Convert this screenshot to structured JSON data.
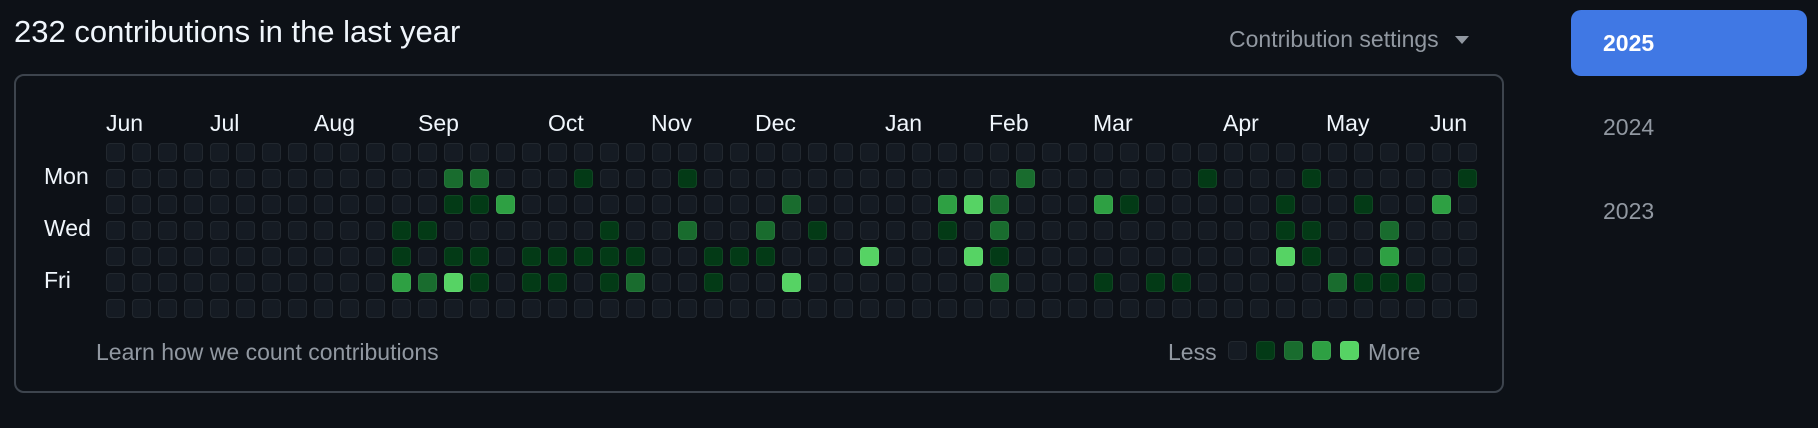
{
  "header": {
    "title": "232 contributions in the last year",
    "settings_label": "Contribution settings"
  },
  "months": [
    "Jun",
    "Jul",
    "Aug",
    "Sep",
    "Oct",
    "Nov",
    "Dec",
    "Jan",
    "Feb",
    "Mar",
    "Apr",
    "May",
    "Jun"
  ],
  "days": [
    "Mon",
    "Wed",
    "Fri"
  ],
  "footer": {
    "learn_link": "Learn how we count contributions",
    "legend_less": "Less",
    "legend_more": "More"
  },
  "years": [
    {
      "label": "2025",
      "selected": true
    },
    {
      "label": "2024",
      "selected": false
    },
    {
      "label": "2023",
      "selected": false
    }
  ],
  "colors": {
    "level0": "#151b23",
    "level1": "#033a16",
    "level2": "#196c2e",
    "level3": "#2ea043",
    "level4": "#56d364",
    "accent": "#4078e4"
  },
  "contribution_grid": {
    "weeks": 53,
    "levels": [
      [
        0,
        0,
        0,
        0,
        0,
        0,
        0,
        0,
        0,
        0,
        0,
        0,
        0,
        0,
        0,
        0,
        0,
        0,
        0,
        0,
        0,
        0,
        0,
        0,
        0,
        0,
        0,
        0,
        0,
        0,
        0,
        0,
        0,
        0,
        0,
        0,
        0,
        0,
        0,
        0,
        0,
        0,
        0,
        0,
        0,
        0,
        0,
        0,
        0,
        0,
        0,
        0,
        0
      ],
      [
        0,
        0,
        0,
        0,
        0,
        0,
        0,
        0,
        0,
        0,
        0,
        0,
        0,
        2,
        2,
        0,
        0,
        0,
        1,
        0,
        0,
        0,
        1,
        0,
        0,
        0,
        0,
        0,
        0,
        0,
        0,
        0,
        0,
        0,
        0,
        2,
        0,
        0,
        0,
        0,
        0,
        0,
        1,
        0,
        0,
        0,
        1,
        0,
        0,
        0,
        0,
        0,
        1
      ],
      [
        0,
        0,
        0,
        0,
        0,
        0,
        0,
        0,
        0,
        0,
        0,
        0,
        0,
        1,
        1,
        3,
        0,
        0,
        0,
        0,
        0,
        0,
        0,
        0,
        0,
        0,
        2,
        0,
        0,
        0,
        0,
        0,
        3,
        4,
        2,
        0,
        0,
        0,
        3,
        1,
        0,
        0,
        0,
        0,
        0,
        1,
        0,
        0,
        1,
        0,
        0,
        3,
        0
      ],
      [
        0,
        0,
        0,
        0,
        0,
        0,
        0,
        0,
        0,
        0,
        0,
        1,
        1,
        0,
        0,
        0,
        0,
        0,
        0,
        1,
        0,
        0,
        2,
        0,
        0,
        2,
        0,
        1,
        0,
        0,
        0,
        0,
        1,
        0,
        2,
        0,
        0,
        0,
        0,
        0,
        0,
        0,
        0,
        0,
        0,
        1,
        1,
        0,
        0,
        2,
        0,
        0,
        0
      ],
      [
        0,
        0,
        0,
        0,
        0,
        0,
        0,
        0,
        0,
        0,
        0,
        1,
        0,
        1,
        1,
        0,
        1,
        1,
        1,
        1,
        1,
        0,
        0,
        1,
        1,
        1,
        0,
        0,
        0,
        4,
        0,
        0,
        0,
        4,
        1,
        0,
        0,
        0,
        0,
        0,
        0,
        0,
        0,
        0,
        0,
        4,
        1,
        0,
        0,
        3,
        0,
        0,
        0
      ],
      [
        0,
        0,
        0,
        0,
        0,
        0,
        0,
        0,
        0,
        0,
        0,
        3,
        2,
        4,
        1,
        0,
        1,
        1,
        0,
        1,
        2,
        0,
        0,
        1,
        0,
        0,
        4,
        0,
        0,
        0,
        0,
        0,
        0,
        0,
        2,
        0,
        0,
        0,
        1,
        0,
        1,
        1,
        0,
        0,
        0,
        0,
        0,
        2,
        1,
        1,
        1,
        0,
        0
      ],
      [
        0,
        0,
        0,
        0,
        0,
        0,
        0,
        0,
        0,
        0,
        0,
        0,
        0,
        0,
        0,
        0,
        0,
        0,
        0,
        0,
        0,
        0,
        0,
        0,
        0,
        0,
        0,
        0,
        0,
        0,
        0,
        0,
        0,
        0,
        0,
        0,
        0,
        0,
        0,
        0,
        0,
        0,
        0,
        0,
        0,
        0,
        0,
        0,
        0,
        0,
        0,
        0,
        0
      ]
    ]
  }
}
